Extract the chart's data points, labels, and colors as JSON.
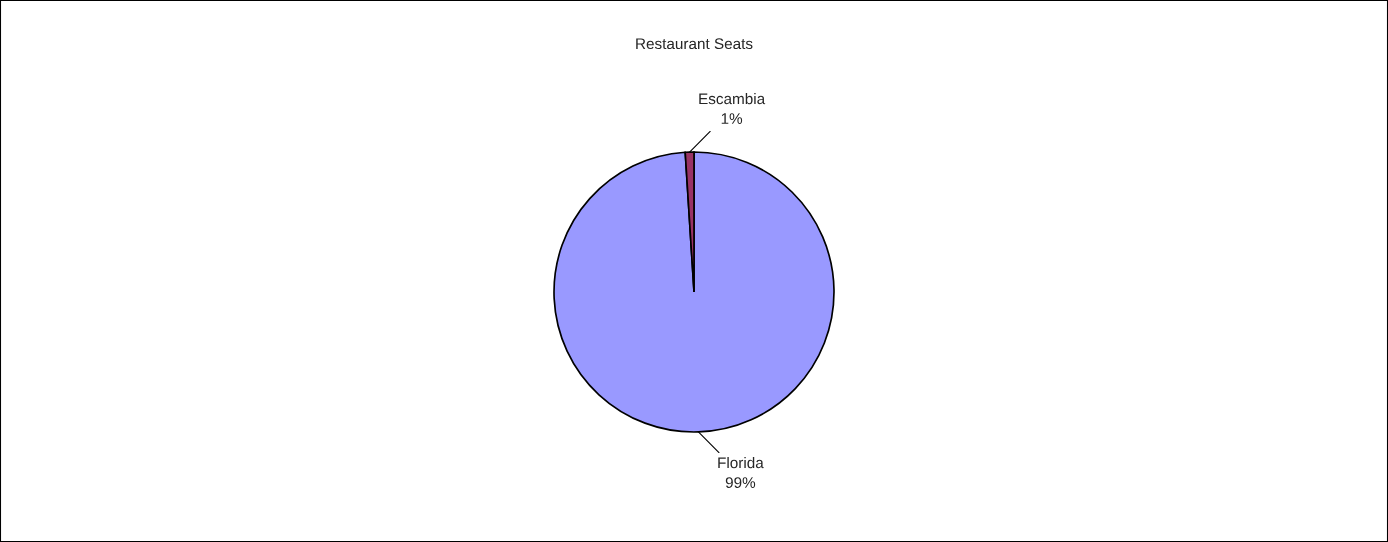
{
  "chart_data": {
    "type": "pie",
    "title": "Restaurant Seats",
    "categories": [
      "Florida",
      "Escambia"
    ],
    "values": [
      99,
      1
    ],
    "colors": [
      "#9999ff",
      "#993366"
    ],
    "value_labels": [
      "99%",
      "1%"
    ]
  }
}
